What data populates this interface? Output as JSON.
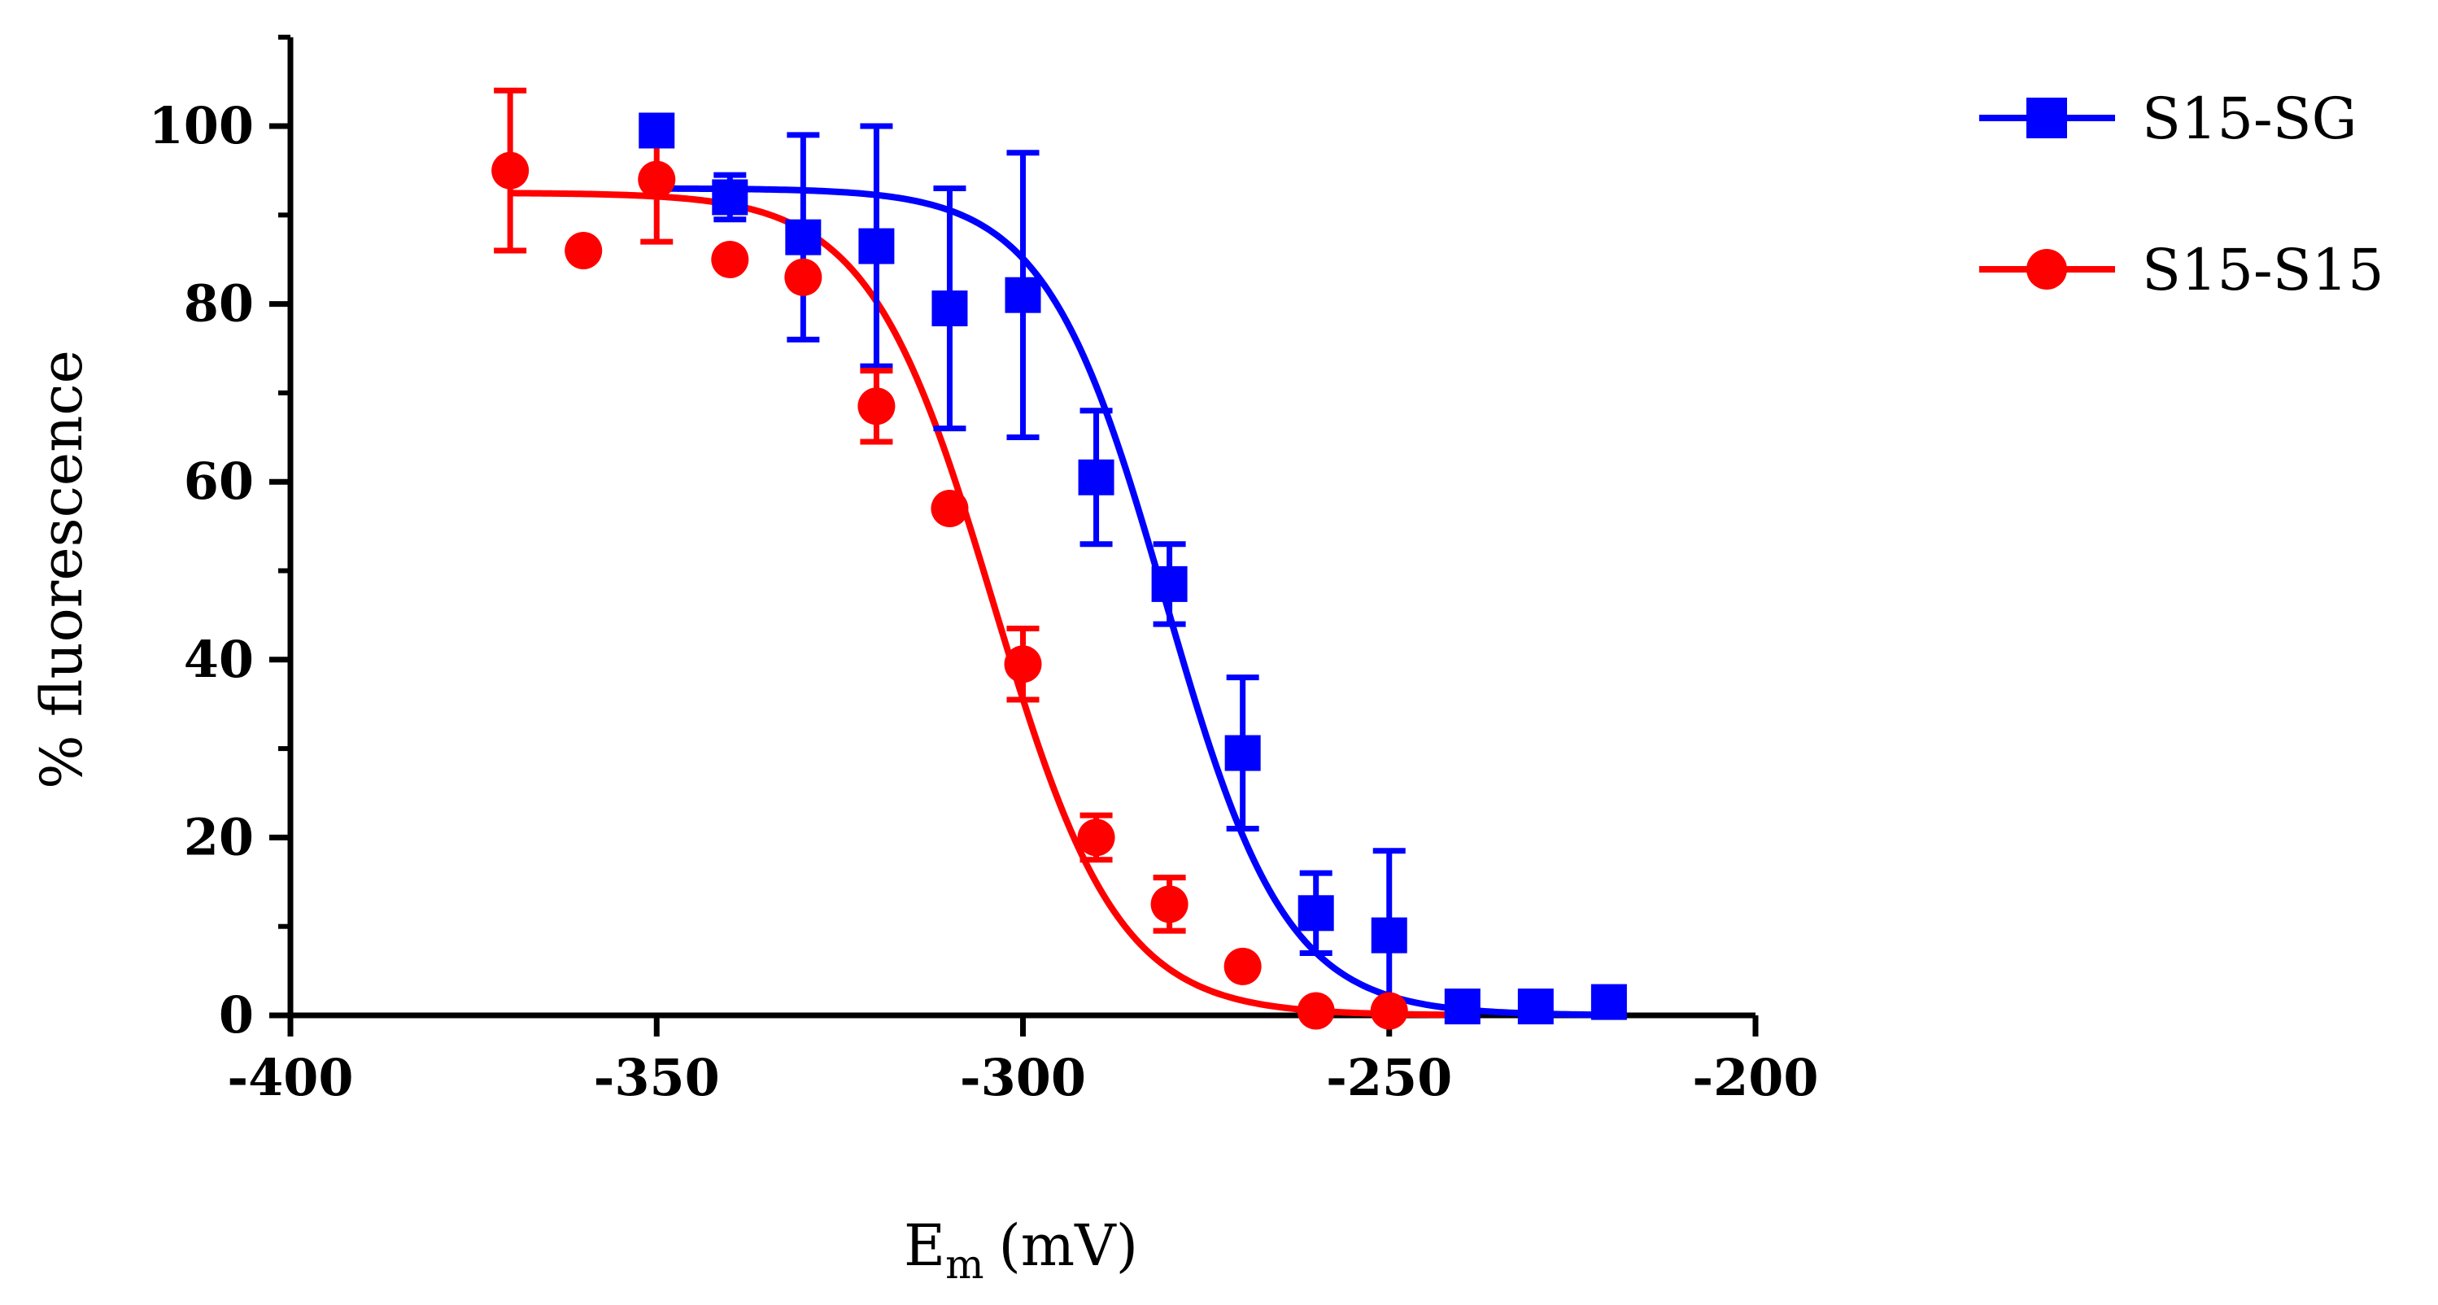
{
  "chart_data": {
    "type": "scatter",
    "title": "",
    "xlabel": "E",
    "xlabel_sub": "m",
    "xlabel_unit": "(mV)",
    "ylabel": "% fluorescence",
    "xlim": [
      -400,
      -200
    ],
    "ylim": [
      0,
      110
    ],
    "xticks": [
      -400,
      -350,
      -300,
      -250,
      -200
    ],
    "yticks": [
      0,
      20,
      40,
      60,
      80,
      100
    ],
    "x_tick_labels": [
      "-400",
      "-350",
      "-300",
      "-250",
      "-200"
    ],
    "y_tick_labels": [
      "0",
      "20",
      "40",
      "60",
      "80",
      "100"
    ],
    "legend_position": "top-right",
    "series": [
      {
        "name": "S15-SG",
        "color": "#0000ff",
        "marker": "square",
        "x": [
          -350,
          -340,
          -330,
          -320,
          -310,
          -300,
          -290,
          -280,
          -270,
          -260,
          -250,
          -240,
          -230,
          -220
        ],
        "y": [
          99.5,
          92,
          87.5,
          86.5,
          79.5,
          81,
          60.5,
          48.5,
          29.5,
          11.5,
          9,
          1,
          1,
          1.5
        ],
        "err": [
          0,
          2.5,
          11.5,
          13.5,
          13.5,
          16,
          7.5,
          4.5,
          8.5,
          4.5,
          9.5,
          0,
          0,
          0
        ],
        "fit": {
          "top": 93,
          "bottom": 0,
          "x50": -280.5,
          "slope": 8.2,
          "x_start": -350,
          "x_end": -220
        }
      },
      {
        "name": "S15-S15",
        "color": "#ff0000",
        "marker": "circle",
        "x": [
          -370,
          -360,
          -350,
          -340,
          -330,
          -320,
          -310,
          -300,
          -290,
          -280,
          -270,
          -260,
          -250
        ],
        "y": [
          95,
          86,
          94,
          85,
          83,
          68.5,
          57,
          39.5,
          20,
          12.5,
          5.5,
          0.5,
          0.5
        ],
        "err": [
          9,
          0,
          7,
          0,
          0,
          4,
          0,
          4,
          2.5,
          3,
          0,
          0,
          0
        ],
        "fit": {
          "top": 92.5,
          "bottom": 0,
          "x50": -304,
          "slope": 8.5,
          "x_start": -370,
          "x_end": -240
        }
      }
    ]
  }
}
